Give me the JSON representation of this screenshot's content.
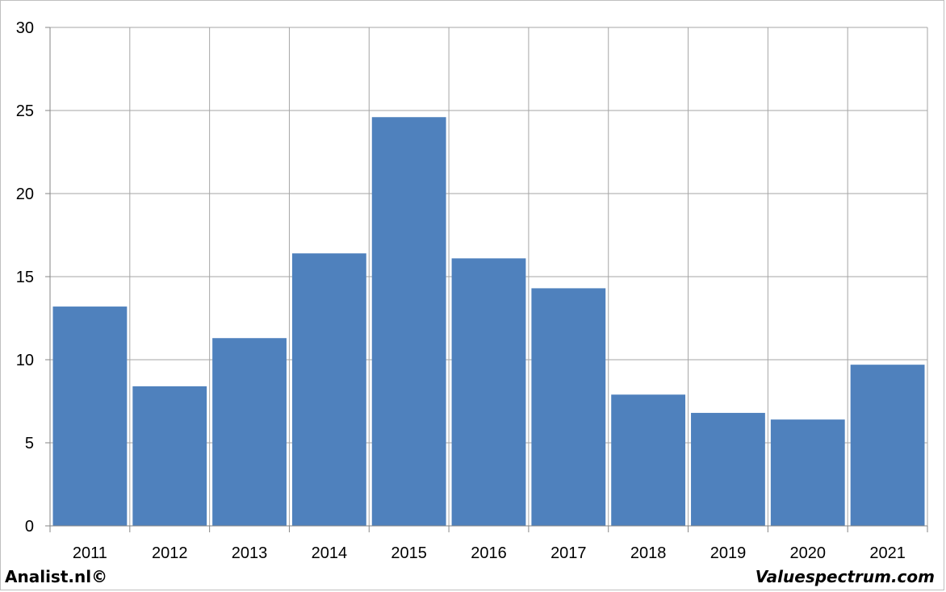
{
  "chart_data": {
    "type": "bar",
    "categories": [
      "2011",
      "2012",
      "2013",
      "2014",
      "2015",
      "2016",
      "2017",
      "2018",
      "2019",
      "2020",
      "2021"
    ],
    "values": [
      13.2,
      8.4,
      11.3,
      16.4,
      24.6,
      16.1,
      14.3,
      7.9,
      6.8,
      6.4,
      9.7
    ],
    "title": "",
    "xlabel": "",
    "ylabel": "",
    "ylim": [
      0,
      30
    ],
    "yticks": [
      0,
      5,
      10,
      15,
      20,
      25,
      30
    ],
    "grid": true,
    "bar_color": "#4f81bd"
  },
  "footer": {
    "left": "Analist.nl©",
    "right": "Valuespectrum.com"
  }
}
